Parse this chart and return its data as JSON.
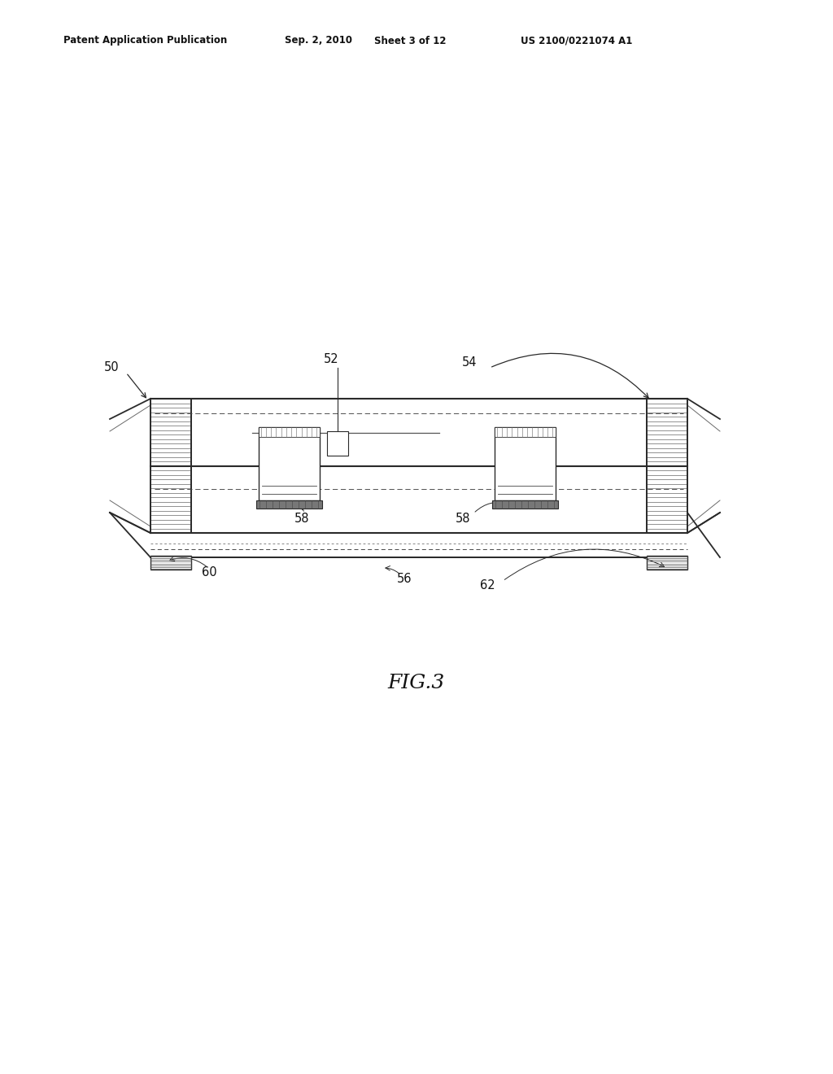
{
  "bg_color": "#ffffff",
  "line_color": "#2a2a2a",
  "gray_color": "#888888",
  "light_gray": "#cccccc",
  "header_text": "Patent Application Publication",
  "header_date": "Sep. 2, 2010",
  "header_sheet": "Sheet 3 of 12",
  "header_patent": "US 2100/0221074 A1",
  "fig_label": "FIG.3",
  "dpi": 100,
  "figw": 10.24,
  "figh": 13.2
}
